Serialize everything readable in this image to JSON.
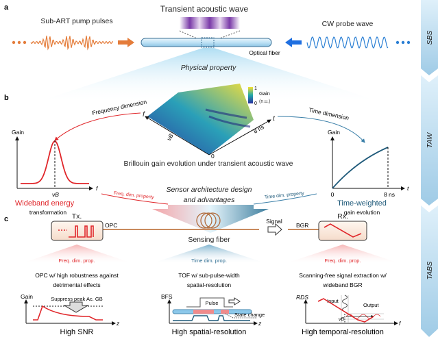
{
  "panels": {
    "a": "a",
    "b": "b",
    "c": "c"
  },
  "side": {
    "sbs": "SBS",
    "taw": "TAW",
    "tabs": "TABS"
  },
  "a": {
    "transient": "Transient acoustic wave",
    "pump": "Sub-ART pump pulses",
    "probe": "CW probe wave",
    "fiber": "Optical fiber",
    "physical": "Physical property"
  },
  "b": {
    "colorbar_max": "1",
    "colorbar_min": "0",
    "colorbar_label": "Gain",
    "colorbar_unit": "(n.u.)",
    "axis_f": "f",
    "axis_t": "t",
    "axis_vb": "νB",
    "axis_8ns": "8 ns",
    "axis_0": "0",
    "surface_caption": "Brillouin gain evolution under transient acoustic wave",
    "freq_dim": "Frequency dimension",
    "time_dim": "Time dimension",
    "left_plot": {
      "ylabel": "Gain",
      "xlabel": "f",
      "tick": "νB",
      "title": "Wideband energy",
      "subtitle": "transformation"
    },
    "right_plot": {
      "ylabel": "Gain",
      "xlabel": "t",
      "tick0": "0",
      "tick1": "8 ns",
      "title": "Time-weighted",
      "subtitle": "gain evolution"
    },
    "sensor1": "Sensor architecture design",
    "sensor2": "and advantages",
    "freq_prop": "Freq. dim. property",
    "time_prop": "Time dim. property"
  },
  "c": {
    "tx": "Tx.",
    "rx": "Rx.",
    "opc": "OPC",
    "bgr": "BGR",
    "signal": "Signal",
    "sensing": "Sensing fiber",
    "col1": {
      "prop": "Freq. dim. prop.",
      "line1": "OPC w/ high robustness against",
      "line2": "detrimental effects",
      "ylabel": "Gain",
      "note": "Suppress peak Ac. GB",
      "xlabel": "z",
      "result": "High SNR"
    },
    "col2": {
      "prop": "Time dim. prop.",
      "line1": "TOF w/ sub-pulse-width",
      "line2": "spatial-resolution",
      "ylabel": "BFS",
      "pulse": "Pulse",
      "state": "State change",
      "xlabel": "z",
      "result": "High spatial-resolution"
    },
    "col3": {
      "prop": "Freq. dim. prop.",
      "line1": "Scanning-free signal extraction w/",
      "line2": "wideband BGR",
      "ylabel": "RDS",
      "input": "Input",
      "output": "Output",
      "tick": "νB",
      "xlabel": "f",
      "result": "High temporal-resolution"
    }
  },
  "colors": {
    "red": "#e0262a",
    "orange": "#e47c3a",
    "blue": "#2a7fd4",
    "teal": "#1f5a7a",
    "side": "#bfe0f2"
  }
}
